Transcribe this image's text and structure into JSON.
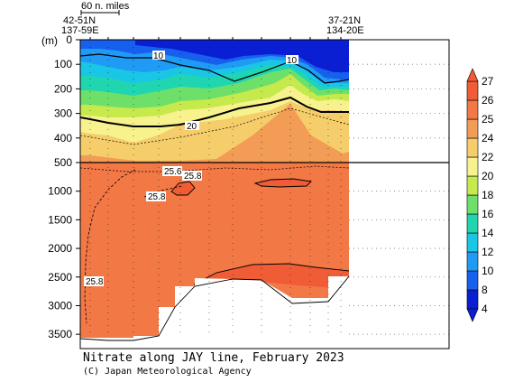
{
  "header": {
    "scale_label": "60 n. miles",
    "left_lat": "42-51N",
    "left_lon": "137-59E",
    "right_lat": "37-21N",
    "right_lon": "134-20E"
  },
  "footer": {
    "title": "Nitrate along JAY line, February 2023",
    "credit": "(C) Japan Meteorological Agency"
  },
  "chart_data": {
    "type": "heatmap",
    "title": "Nitrate along JAY line, February 2023",
    "ylabel": "(m)",
    "y_axis_upper": {
      "range": [
        0,
        500
      ],
      "ticks": [
        0,
        100,
        200,
        300,
        400,
        500
      ]
    },
    "y_axis_lower": {
      "range": [
        500,
        3750
      ],
      "ticks": [
        1000,
        1500,
        2000,
        2500,
        3000,
        3500
      ]
    },
    "y_tick_labels": [
      "0",
      "100",
      "200",
      "300",
      "400",
      "500",
      "1000",
      "1500",
      "2000",
      "2500",
      "3000",
      "3500"
    ],
    "ylabel_unit": "(m)",
    "colorbar": {
      "ticks": [
        4,
        8,
        10,
        12,
        14,
        16,
        18,
        20,
        22,
        24,
        25,
        26,
        27
      ],
      "bands": [
        {
          "from": 4,
          "to": 8,
          "color": "#0a1fd4"
        },
        {
          "from": 8,
          "to": 10,
          "color": "#1760ee"
        },
        {
          "from": 10,
          "to": 12,
          "color": "#1f9bf5"
        },
        {
          "from": 12,
          "to": 14,
          "color": "#19c6e6"
        },
        {
          "from": 14,
          "to": 16,
          "color": "#20d6b0"
        },
        {
          "from": 16,
          "to": 18,
          "color": "#6ee06a"
        },
        {
          "from": 18,
          "to": 20,
          "color": "#c6ea4c"
        },
        {
          "from": 20,
          "to": 22,
          "color": "#f7f28e"
        },
        {
          "from": 22,
          "to": 24,
          "color": "#f5cd6a"
        },
        {
          "from": 24,
          "to": 25,
          "color": "#f29c55"
        },
        {
          "from": 25,
          "to": 26,
          "color": "#f27845"
        },
        {
          "from": 26,
          "to": 27,
          "color": "#f05c35"
        }
      ]
    },
    "contour_labels": [
      "10",
      "10",
      "20",
      "25.6",
      "25.8",
      "25.8",
      "25.8"
    ]
  }
}
